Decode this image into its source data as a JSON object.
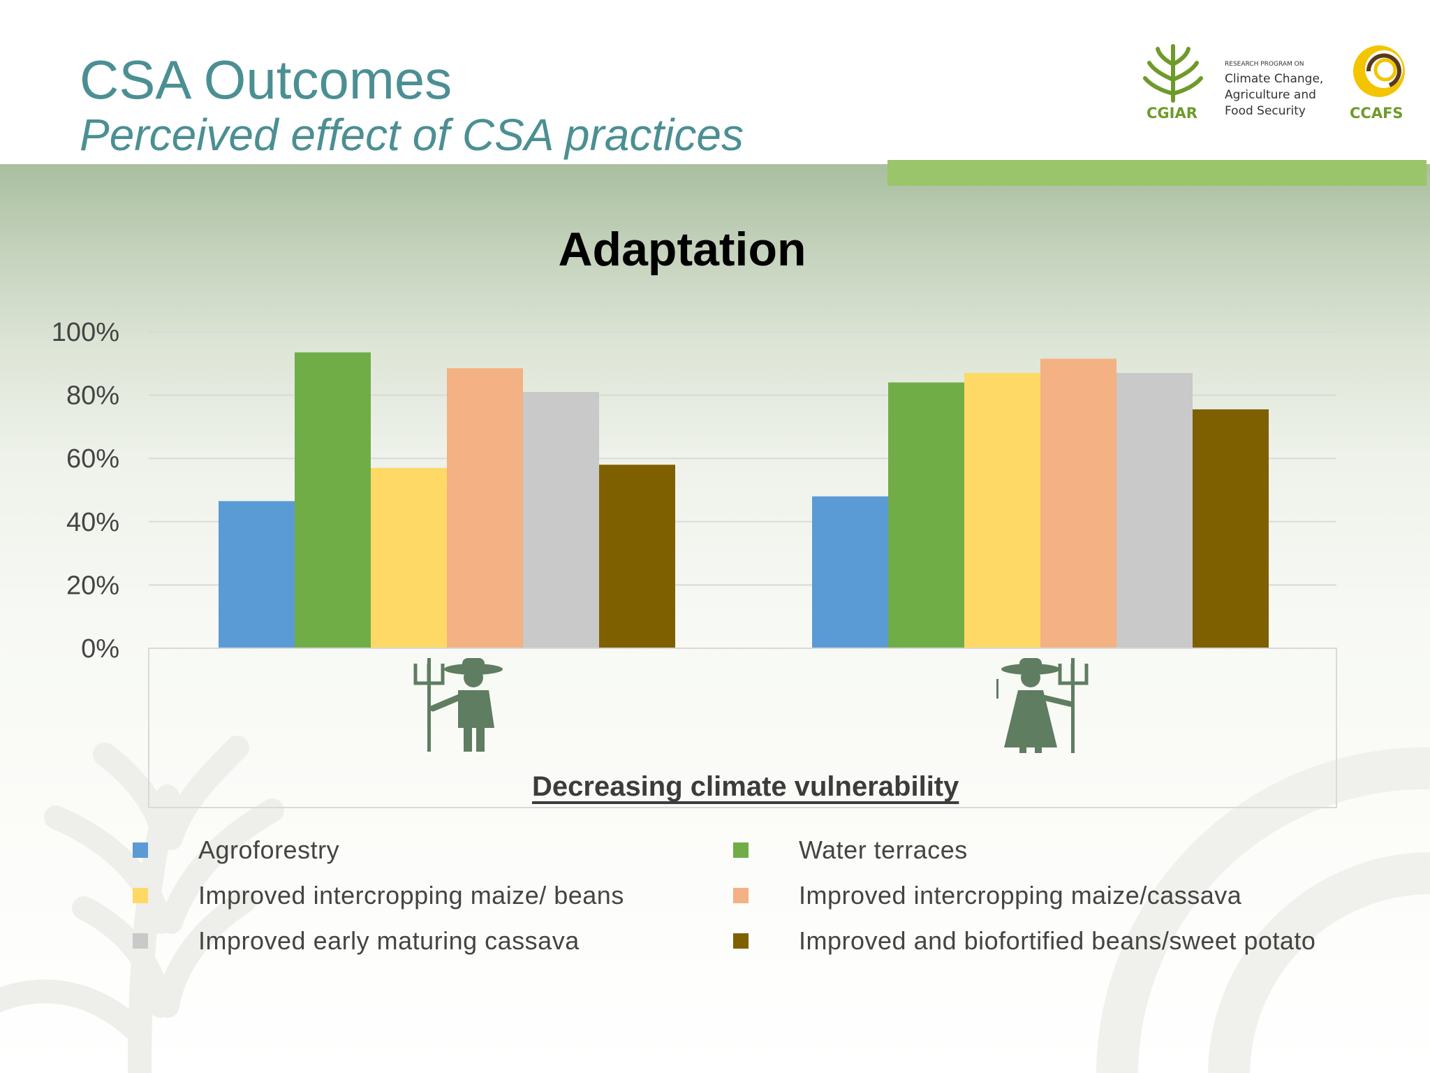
{
  "header": {
    "title": "CSA Outcomes",
    "subtitle": "Perceived effect of CSA practices"
  },
  "logo": {
    "cgiar_text": "CGIAR",
    "program_top": "RESEARCH PROGRAM ON",
    "program_line1": "Climate Change,",
    "program_line2": "Agriculture and",
    "program_line3": "Food Security",
    "ccafs_text": "CCAFS"
  },
  "colors": {
    "title": "#4b8f93",
    "accent_bar": "#9bc56a"
  },
  "chart_data": {
    "type": "bar",
    "title": "Adaptation",
    "xlabel": "Decreasing climate vulnerability",
    "ylabel": "",
    "ylim": [
      0,
      100
    ],
    "yticks": [
      "0%",
      "20%",
      "40%",
      "60%",
      "80%",
      "100%"
    ],
    "grid": true,
    "legend_position": "bottom",
    "categories": [
      "male-farmer-icon",
      "female-farmer-icon"
    ],
    "series": [
      {
        "name": "Agroforestry",
        "color": "#5b9bd5",
        "values": [
          46.5,
          48
        ]
      },
      {
        "name": "Water terraces",
        "color": "#70ad47",
        "values": [
          93.5,
          84
        ]
      },
      {
        "name": "Improved intercropping maize/ beans",
        "color": "#ffd966",
        "values": [
          57,
          87
        ]
      },
      {
        "name": "Improved intercropping maize/cassava",
        "color": "#f4b183",
        "values": [
          88.5,
          91.5
        ]
      },
      {
        "name": "Improved early maturing cassava",
        "color": "#c9c9c9",
        "values": [
          81,
          87
        ]
      },
      {
        "name": "Improved and biofortified beans/sweet potato",
        "color": "#7f6000",
        "values": [
          58,
          75.5
        ]
      }
    ]
  }
}
